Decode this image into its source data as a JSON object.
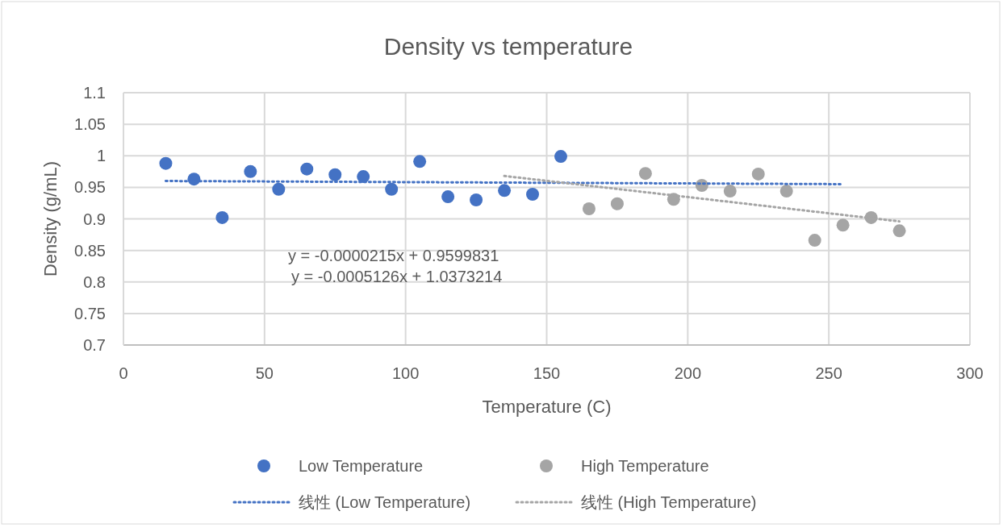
{
  "chart_data": {
    "type": "scatter",
    "title": "Density vs temperature",
    "xlabel": "Temperature (C)",
    "ylabel": "Density (g/mL)",
    "xlim": [
      0,
      300
    ],
    "ylim": [
      0.7,
      1.1
    ],
    "xticks": [
      0,
      50,
      100,
      150,
      200,
      250,
      300
    ],
    "yticks": [
      0.7,
      0.75,
      0.8,
      0.85,
      0.9,
      0.95,
      1,
      1.05,
      1.1
    ],
    "grid": true,
    "legend": "bottom",
    "series": [
      {
        "name": "Low Temperature",
        "marker": "circle",
        "color": "#4472c4",
        "x": [
          15,
          25,
          35,
          45,
          55,
          65,
          75,
          85,
          95,
          105,
          115,
          125,
          135,
          145,
          155
        ],
        "values": [
          0.988,
          0.963,
          0.902,
          0.975,
          0.947,
          0.979,
          0.97,
          0.967,
          0.947,
          0.991,
          0.935,
          0.93,
          0.945,
          0.939,
          0.999
        ]
      },
      {
        "name": "High Temperature",
        "marker": "circle",
        "color": "#a5a5a5",
        "x": [
          165,
          175,
          185,
          195,
          205,
          215,
          225,
          235,
          245,
          255,
          265,
          275
        ],
        "values": [
          0.916,
          0.924,
          0.972,
          0.931,
          0.953,
          0.944,
          0.971,
          0.944,
          0.866,
          0.89,
          0.902,
          0.881
        ]
      },
      {
        "name": "线性 (Low Temperature)",
        "type": "line",
        "line_style": "dotted",
        "color": "#4472c4",
        "x": [
          15,
          255
        ],
        "marker": "none",
        "values": [
          0.96,
          0.955
        ]
      },
      {
        "name": "线性 (High Temperature)",
        "type": "line",
        "line_style": "dotted",
        "color": "#a5a5a5",
        "x": [
          135,
          275
        ],
        "marker": "none",
        "values": [
          0.968,
          0.896
        ]
      }
    ],
    "annotations": [
      "y = -0.0000215x + 0.9599831",
      "y = -0.0005126x + 1.0373214"
    ]
  }
}
